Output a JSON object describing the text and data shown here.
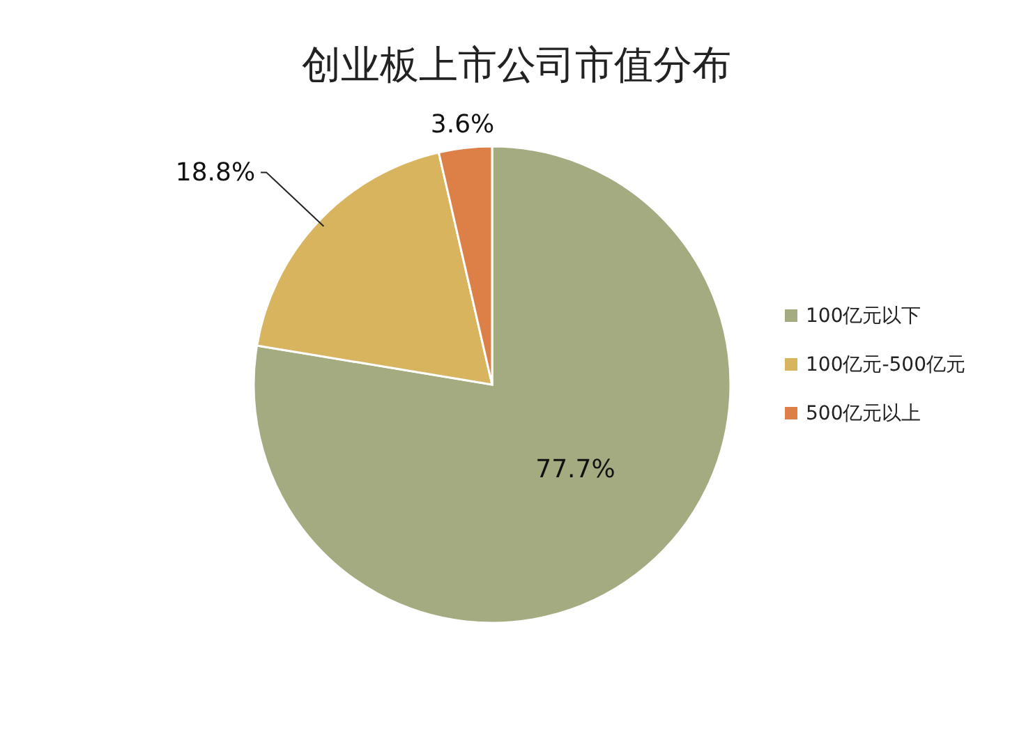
{
  "chart_data": {
    "type": "pie",
    "title": "创业板上市公司市值分布",
    "categories": [
      "100亿元以下",
      "100亿元-500亿元",
      "500亿元以上"
    ],
    "values": [
      77.7,
      18.8,
      3.6
    ],
    "colors": [
      "#a5ab80",
      "#d9b45e",
      "#dd8047"
    ],
    "value_labels": [
      "77.7%",
      "18.8%",
      "3.6%"
    ],
    "legend": "right"
  }
}
